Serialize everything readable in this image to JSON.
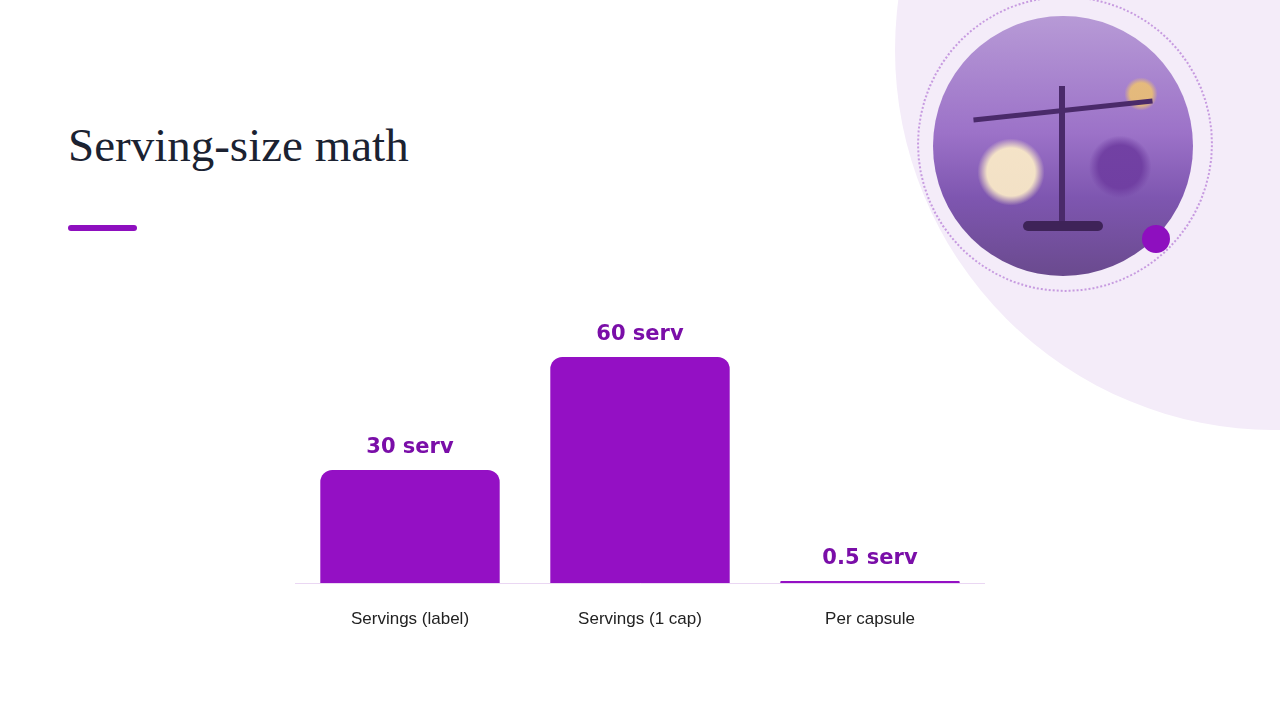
{
  "chart_data": {
    "type": "bar",
    "title": "Serving-size math",
    "categories": [
      "Servings (label)",
      "Servings (1 cap)",
      "Per capsule"
    ],
    "values": [
      30,
      60,
      0.5
    ],
    "value_labels": [
      "30 serv",
      "60 serv",
      "0.5 serv"
    ],
    "data_labels": true,
    "color": "#9410c4",
    "ylim": [
      0,
      60
    ],
    "grid": false,
    "tick_labels": "x"
  }
}
